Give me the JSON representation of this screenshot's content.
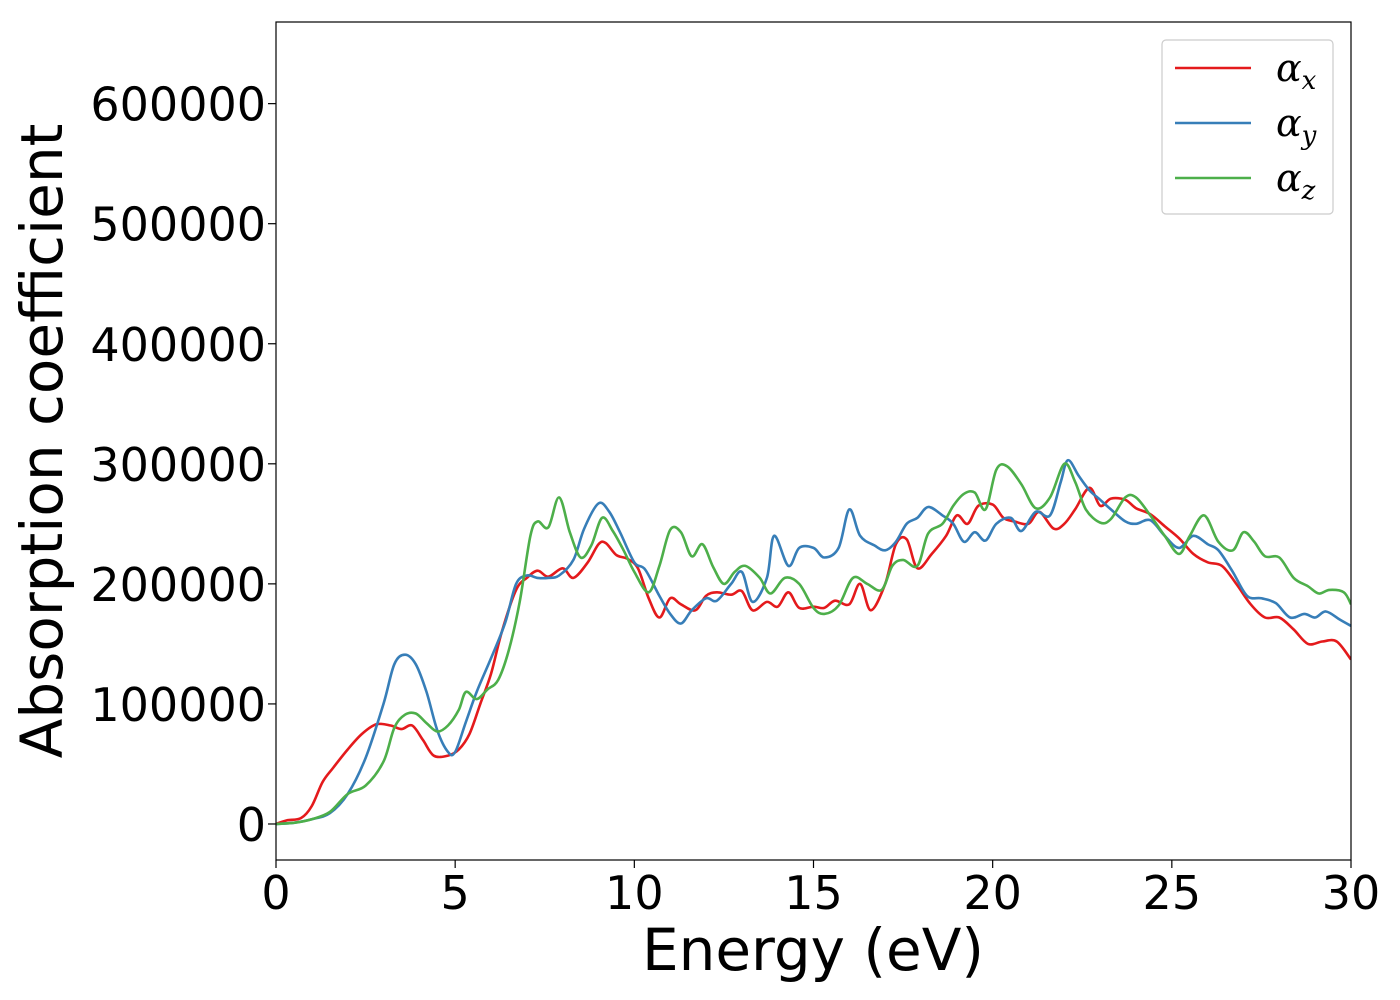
{
  "chart_data": {
    "type": "line",
    "xlabel": "Energy (eV)",
    "ylabel": "Absorption coefficient",
    "xlim": [
      0,
      30
    ],
    "ylim": [
      -30000,
      668000
    ],
    "x_ticks": [
      0,
      5,
      10,
      15,
      20,
      25,
      30
    ],
    "y_ticks": [
      0,
      100000,
      200000,
      300000,
      400000,
      500000,
      600000
    ],
    "grid": false,
    "legend_position": "top-right",
    "series": [
      {
        "name": "αx",
        "symbol": "α",
        "subscript": "x",
        "color": "#e41a1c",
        "points": [
          [
            0,
            0
          ],
          [
            0.3,
            3000
          ],
          [
            0.7,
            5000
          ],
          [
            1.0,
            15000
          ],
          [
            1.3,
            35000
          ],
          [
            1.6,
            47000
          ],
          [
            2.0,
            62000
          ],
          [
            2.4,
            75000
          ],
          [
            2.8,
            83000
          ],
          [
            3.2,
            82000
          ],
          [
            3.5,
            79000
          ],
          [
            3.8,
            82000
          ],
          [
            4.1,
            70000
          ],
          [
            4.4,
            57000
          ],
          [
            4.8,
            57000
          ],
          [
            5.1,
            62000
          ],
          [
            5.4,
            75000
          ],
          [
            5.7,
            100000
          ],
          [
            6.0,
            125000
          ],
          [
            6.3,
            160000
          ],
          [
            6.7,
            195000
          ],
          [
            7.0,
            205000
          ],
          [
            7.3,
            211000
          ],
          [
            7.6,
            206000
          ],
          [
            8.0,
            213000
          ],
          [
            8.3,
            205000
          ],
          [
            8.7,
            218000
          ],
          [
            9.0,
            233000
          ],
          [
            9.2,
            234000
          ],
          [
            9.5,
            224000
          ],
          [
            9.8,
            221000
          ],
          [
            10.1,
            213000
          ],
          [
            10.4,
            188000
          ],
          [
            10.7,
            172000
          ],
          [
            11.0,
            188000
          ],
          [
            11.3,
            183000
          ],
          [
            11.7,
            178000
          ],
          [
            12.0,
            190000
          ],
          [
            12.3,
            193000
          ],
          [
            12.7,
            191000
          ],
          [
            13.0,
            194000
          ],
          [
            13.3,
            178000
          ],
          [
            13.7,
            185000
          ],
          [
            14.0,
            181000
          ],
          [
            14.3,
            193000
          ],
          [
            14.6,
            180000
          ],
          [
            15.0,
            181000
          ],
          [
            15.3,
            180000
          ],
          [
            15.6,
            186000
          ],
          [
            16.0,
            183000
          ],
          [
            16.3,
            200000
          ],
          [
            16.6,
            178000
          ],
          [
            17.0,
            200000
          ],
          [
            17.3,
            233000
          ],
          [
            17.6,
            237000
          ],
          [
            17.9,
            213000
          ],
          [
            18.3,
            225000
          ],
          [
            18.7,
            240000
          ],
          [
            19.0,
            257000
          ],
          [
            19.3,
            250000
          ],
          [
            19.6,
            265000
          ],
          [
            20.0,
            266000
          ],
          [
            20.3,
            255000
          ],
          [
            20.6,
            252000
          ],
          [
            21.0,
            250000
          ],
          [
            21.3,
            260000
          ],
          [
            21.7,
            246000
          ],
          [
            22.0,
            250000
          ],
          [
            22.3,
            262000
          ],
          [
            22.7,
            280000
          ],
          [
            23.0,
            265000
          ],
          [
            23.3,
            271000
          ],
          [
            23.7,
            270000
          ],
          [
            24.0,
            263000
          ],
          [
            24.4,
            258000
          ],
          [
            24.8,
            248000
          ],
          [
            25.2,
            238000
          ],
          [
            25.6,
            225000
          ],
          [
            26.0,
            218000
          ],
          [
            26.4,
            215000
          ],
          [
            26.8,
            200000
          ],
          [
            27.2,
            183000
          ],
          [
            27.6,
            172000
          ],
          [
            28.0,
            172000
          ],
          [
            28.4,
            162000
          ],
          [
            28.8,
            150000
          ],
          [
            29.2,
            152000
          ],
          [
            29.6,
            152000
          ],
          [
            30.0,
            137000
          ]
        ]
      },
      {
        "name": "αy",
        "symbol": "α",
        "subscript": "y",
        "color": "#377eb8",
        "points": [
          [
            0,
            0
          ],
          [
            0.5,
            1000
          ],
          [
            1.0,
            4000
          ],
          [
            1.5,
            9000
          ],
          [
            2.0,
            25000
          ],
          [
            2.5,
            55000
          ],
          [
            3.0,
            100000
          ],
          [
            3.3,
            133000
          ],
          [
            3.6,
            141000
          ],
          [
            3.9,
            133000
          ],
          [
            4.2,
            110000
          ],
          [
            4.5,
            78000
          ],
          [
            4.8,
            60000
          ],
          [
            5.0,
            60000
          ],
          [
            5.3,
            85000
          ],
          [
            5.6,
            110000
          ],
          [
            6.0,
            138000
          ],
          [
            6.4,
            168000
          ],
          [
            6.7,
            200000
          ],
          [
            7.0,
            207000
          ],
          [
            7.3,
            205000
          ],
          [
            7.6,
            205000
          ],
          [
            7.9,
            207000
          ],
          [
            8.3,
            220000
          ],
          [
            8.6,
            246000
          ],
          [
            9.0,
            267000
          ],
          [
            9.3,
            260000
          ],
          [
            9.6,
            243000
          ],
          [
            10.0,
            218000
          ],
          [
            10.3,
            212000
          ],
          [
            10.7,
            190000
          ],
          [
            11.0,
            175000
          ],
          [
            11.3,
            167000
          ],
          [
            11.6,
            178000
          ],
          [
            12.0,
            188000
          ],
          [
            12.3,
            186000
          ],
          [
            12.7,
            200000
          ],
          [
            13.0,
            210000
          ],
          [
            13.3,
            185000
          ],
          [
            13.7,
            205000
          ],
          [
            13.9,
            240000
          ],
          [
            14.3,
            215000
          ],
          [
            14.6,
            230000
          ],
          [
            15.0,
            230000
          ],
          [
            15.3,
            222000
          ],
          [
            15.7,
            230000
          ],
          [
            16.0,
            262000
          ],
          [
            16.3,
            240000
          ],
          [
            16.7,
            232000
          ],
          [
            17.0,
            228000
          ],
          [
            17.3,
            235000
          ],
          [
            17.6,
            250000
          ],
          [
            17.9,
            255000
          ],
          [
            18.2,
            264000
          ],
          [
            18.6,
            257000
          ],
          [
            18.9,
            250000
          ],
          [
            19.2,
            235000
          ],
          [
            19.5,
            243000
          ],
          [
            19.8,
            236000
          ],
          [
            20.1,
            250000
          ],
          [
            20.5,
            255000
          ],
          [
            20.8,
            244000
          ],
          [
            21.2,
            260000
          ],
          [
            21.6,
            257000
          ],
          [
            21.9,
            285000
          ],
          [
            22.1,
            303000
          ],
          [
            22.4,
            290000
          ],
          [
            22.7,
            278000
          ],
          [
            23.0,
            270000
          ],
          [
            23.3,
            262000
          ],
          [
            23.7,
            252000
          ],
          [
            24.0,
            250000
          ],
          [
            24.4,
            253000
          ],
          [
            24.8,
            240000
          ],
          [
            25.2,
            230000
          ],
          [
            25.6,
            240000
          ],
          [
            26.0,
            233000
          ],
          [
            26.3,
            228000
          ],
          [
            26.7,
            210000
          ],
          [
            27.1,
            190000
          ],
          [
            27.5,
            188000
          ],
          [
            27.9,
            184000
          ],
          [
            28.3,
            172000
          ],
          [
            28.7,
            175000
          ],
          [
            29.0,
            172000
          ],
          [
            29.3,
            177000
          ],
          [
            29.7,
            170000
          ],
          [
            30.0,
            165000
          ]
        ]
      },
      {
        "name": "αz",
        "symbol": "α",
        "subscript": "z",
        "color": "#4daf4a",
        "points": [
          [
            0,
            0
          ],
          [
            0.5,
            1000
          ],
          [
            1.0,
            4000
          ],
          [
            1.5,
            10000
          ],
          [
            2.0,
            25000
          ],
          [
            2.5,
            32000
          ],
          [
            3.0,
            52000
          ],
          [
            3.3,
            80000
          ],
          [
            3.6,
            91000
          ],
          [
            3.9,
            92000
          ],
          [
            4.2,
            84000
          ],
          [
            4.5,
            77000
          ],
          [
            4.8,
            82000
          ],
          [
            5.1,
            95000
          ],
          [
            5.3,
            110000
          ],
          [
            5.6,
            104000
          ],
          [
            5.9,
            112000
          ],
          [
            6.2,
            120000
          ],
          [
            6.5,
            145000
          ],
          [
            6.8,
            185000
          ],
          [
            7.1,
            240000
          ],
          [
            7.3,
            252000
          ],
          [
            7.6,
            247000
          ],
          [
            7.9,
            272000
          ],
          [
            8.2,
            243000
          ],
          [
            8.5,
            222000
          ],
          [
            8.8,
            232000
          ],
          [
            9.1,
            255000
          ],
          [
            9.4,
            244000
          ],
          [
            9.7,
            228000
          ],
          [
            10.0,
            210000
          ],
          [
            10.4,
            193000
          ],
          [
            10.7,
            215000
          ],
          [
            11.0,
            245000
          ],
          [
            11.3,
            243000
          ],
          [
            11.6,
            223000
          ],
          [
            11.9,
            233000
          ],
          [
            12.2,
            214000
          ],
          [
            12.5,
            200000
          ],
          [
            12.8,
            210000
          ],
          [
            13.1,
            215000
          ],
          [
            13.5,
            205000
          ],
          [
            13.8,
            192000
          ],
          [
            14.2,
            205000
          ],
          [
            14.6,
            200000
          ],
          [
            15.0,
            180000
          ],
          [
            15.3,
            175000
          ],
          [
            15.7,
            182000
          ],
          [
            16.1,
            205000
          ],
          [
            16.5,
            200000
          ],
          [
            16.9,
            195000
          ],
          [
            17.2,
            215000
          ],
          [
            17.5,
            220000
          ],
          [
            17.9,
            215000
          ],
          [
            18.2,
            242000
          ],
          [
            18.6,
            250000
          ],
          [
            18.9,
            265000
          ],
          [
            19.2,
            275000
          ],
          [
            19.5,
            276000
          ],
          [
            19.8,
            262000
          ],
          [
            20.1,
            295000
          ],
          [
            20.4,
            298000
          ],
          [
            20.8,
            283000
          ],
          [
            21.2,
            263000
          ],
          [
            21.6,
            272000
          ],
          [
            22.0,
            300000
          ],
          [
            22.3,
            285000
          ],
          [
            22.6,
            262000
          ],
          [
            23.0,
            251000
          ],
          [
            23.3,
            254000
          ],
          [
            23.7,
            272000
          ],
          [
            24.0,
            272000
          ],
          [
            24.4,
            257000
          ],
          [
            24.8,
            240000
          ],
          [
            25.2,
            225000
          ],
          [
            25.5,
            240000
          ],
          [
            25.9,
            257000
          ],
          [
            26.3,
            235000
          ],
          [
            26.7,
            228000
          ],
          [
            27.0,
            243000
          ],
          [
            27.3,
            235000
          ],
          [
            27.6,
            223000
          ],
          [
            28.0,
            222000
          ],
          [
            28.4,
            205000
          ],
          [
            28.8,
            198000
          ],
          [
            29.1,
            192000
          ],
          [
            29.4,
            195000
          ],
          [
            29.8,
            193000
          ],
          [
            30.0,
            183000
          ]
        ]
      }
    ]
  }
}
